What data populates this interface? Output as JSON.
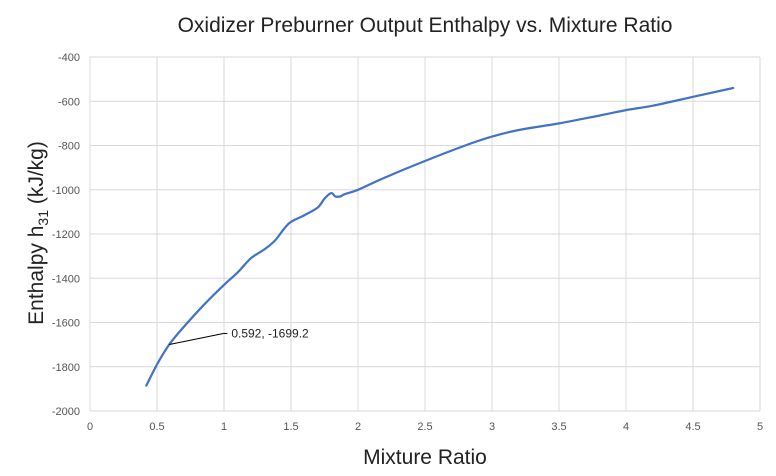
{
  "chart_data": {
    "type": "line",
    "title": "Oxidizer Preburner Output Enthalpy vs. Mixture Ratio",
    "xlabel": "Mixture Ratio",
    "ylabel_main": "Enthalpy h",
    "ylabel_sub": "31",
    "ylabel_units": " (kJ/kg)",
    "xlim": [
      0,
      5
    ],
    "ylim": [
      -2000,
      -400
    ],
    "x_ticks": [
      "0",
      "0.5",
      "1",
      "1.5",
      "2",
      "2.5",
      "3",
      "3.5",
      "4",
      "4.5",
      "5"
    ],
    "y_ticks": [
      "-400",
      "-600",
      "-800",
      "-1000",
      "-1200",
      "-1400",
      "-1600",
      "-1800",
      "-2000"
    ],
    "grid": true,
    "series": [
      {
        "name": "Enthalpy",
        "color": "#4472C4",
        "x": [
          0.42,
          0.5,
          0.592,
          0.7,
          0.85,
          1.0,
          1.1,
          1.2,
          1.3,
          1.38,
          1.45,
          1.5,
          1.6,
          1.7,
          1.75,
          1.8,
          1.83,
          1.87,
          1.9,
          2.0,
          2.2,
          2.5,
          2.8,
          3.0,
          3.2,
          3.5,
          3.8,
          4.0,
          4.2,
          4.5,
          4.8
        ],
        "y": [
          -1885,
          -1790,
          -1699.2,
          -1620,
          -1520,
          -1430,
          -1375,
          -1310,
          -1270,
          -1230,
          -1175,
          -1145,
          -1115,
          -1080,
          -1040,
          -1015,
          -1030,
          -1030,
          -1020,
          -1000,
          -945,
          -870,
          -800,
          -760,
          -730,
          -700,
          -665,
          -640,
          -620,
          -580,
          -540
        ]
      }
    ],
    "annotation": {
      "label": "0.592, -1699.2",
      "x": 0.592,
      "y": -1699.2
    }
  }
}
